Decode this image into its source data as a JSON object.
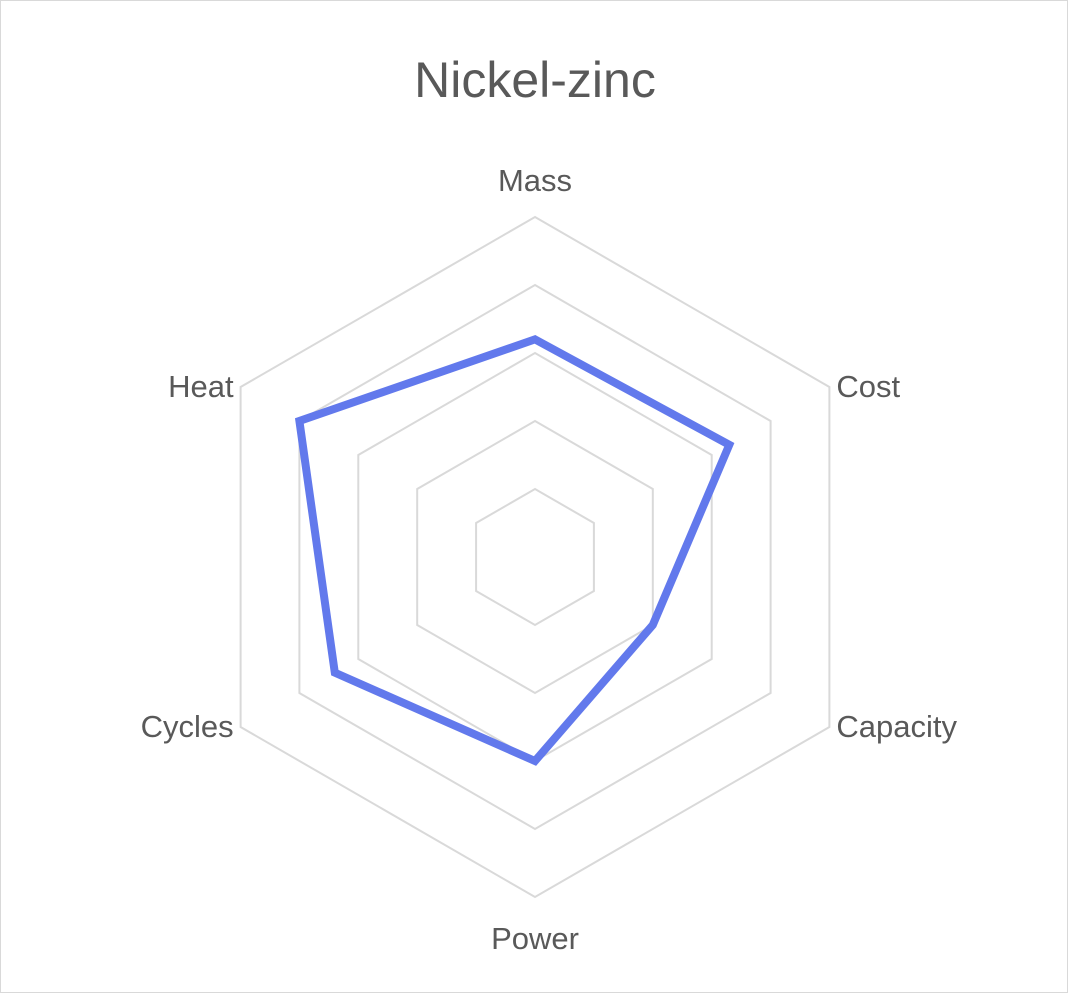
{
  "chart_data": {
    "type": "radar",
    "title": "Nickel-zinc",
    "categories": [
      "Mass",
      "Cost",
      "Capacity",
      "Power",
      "Cycles",
      "Heat"
    ],
    "series": [
      {
        "values": [
          3.2,
          3.3,
          2.0,
          3.0,
          3.4,
          4.0
        ]
      }
    ],
    "rlim": [
      0,
      5
    ],
    "grid_levels": 5,
    "legend": "none",
    "colors": {
      "series": "#6279ec",
      "grid": "#d9d9d9",
      "text": "#595959"
    }
  }
}
